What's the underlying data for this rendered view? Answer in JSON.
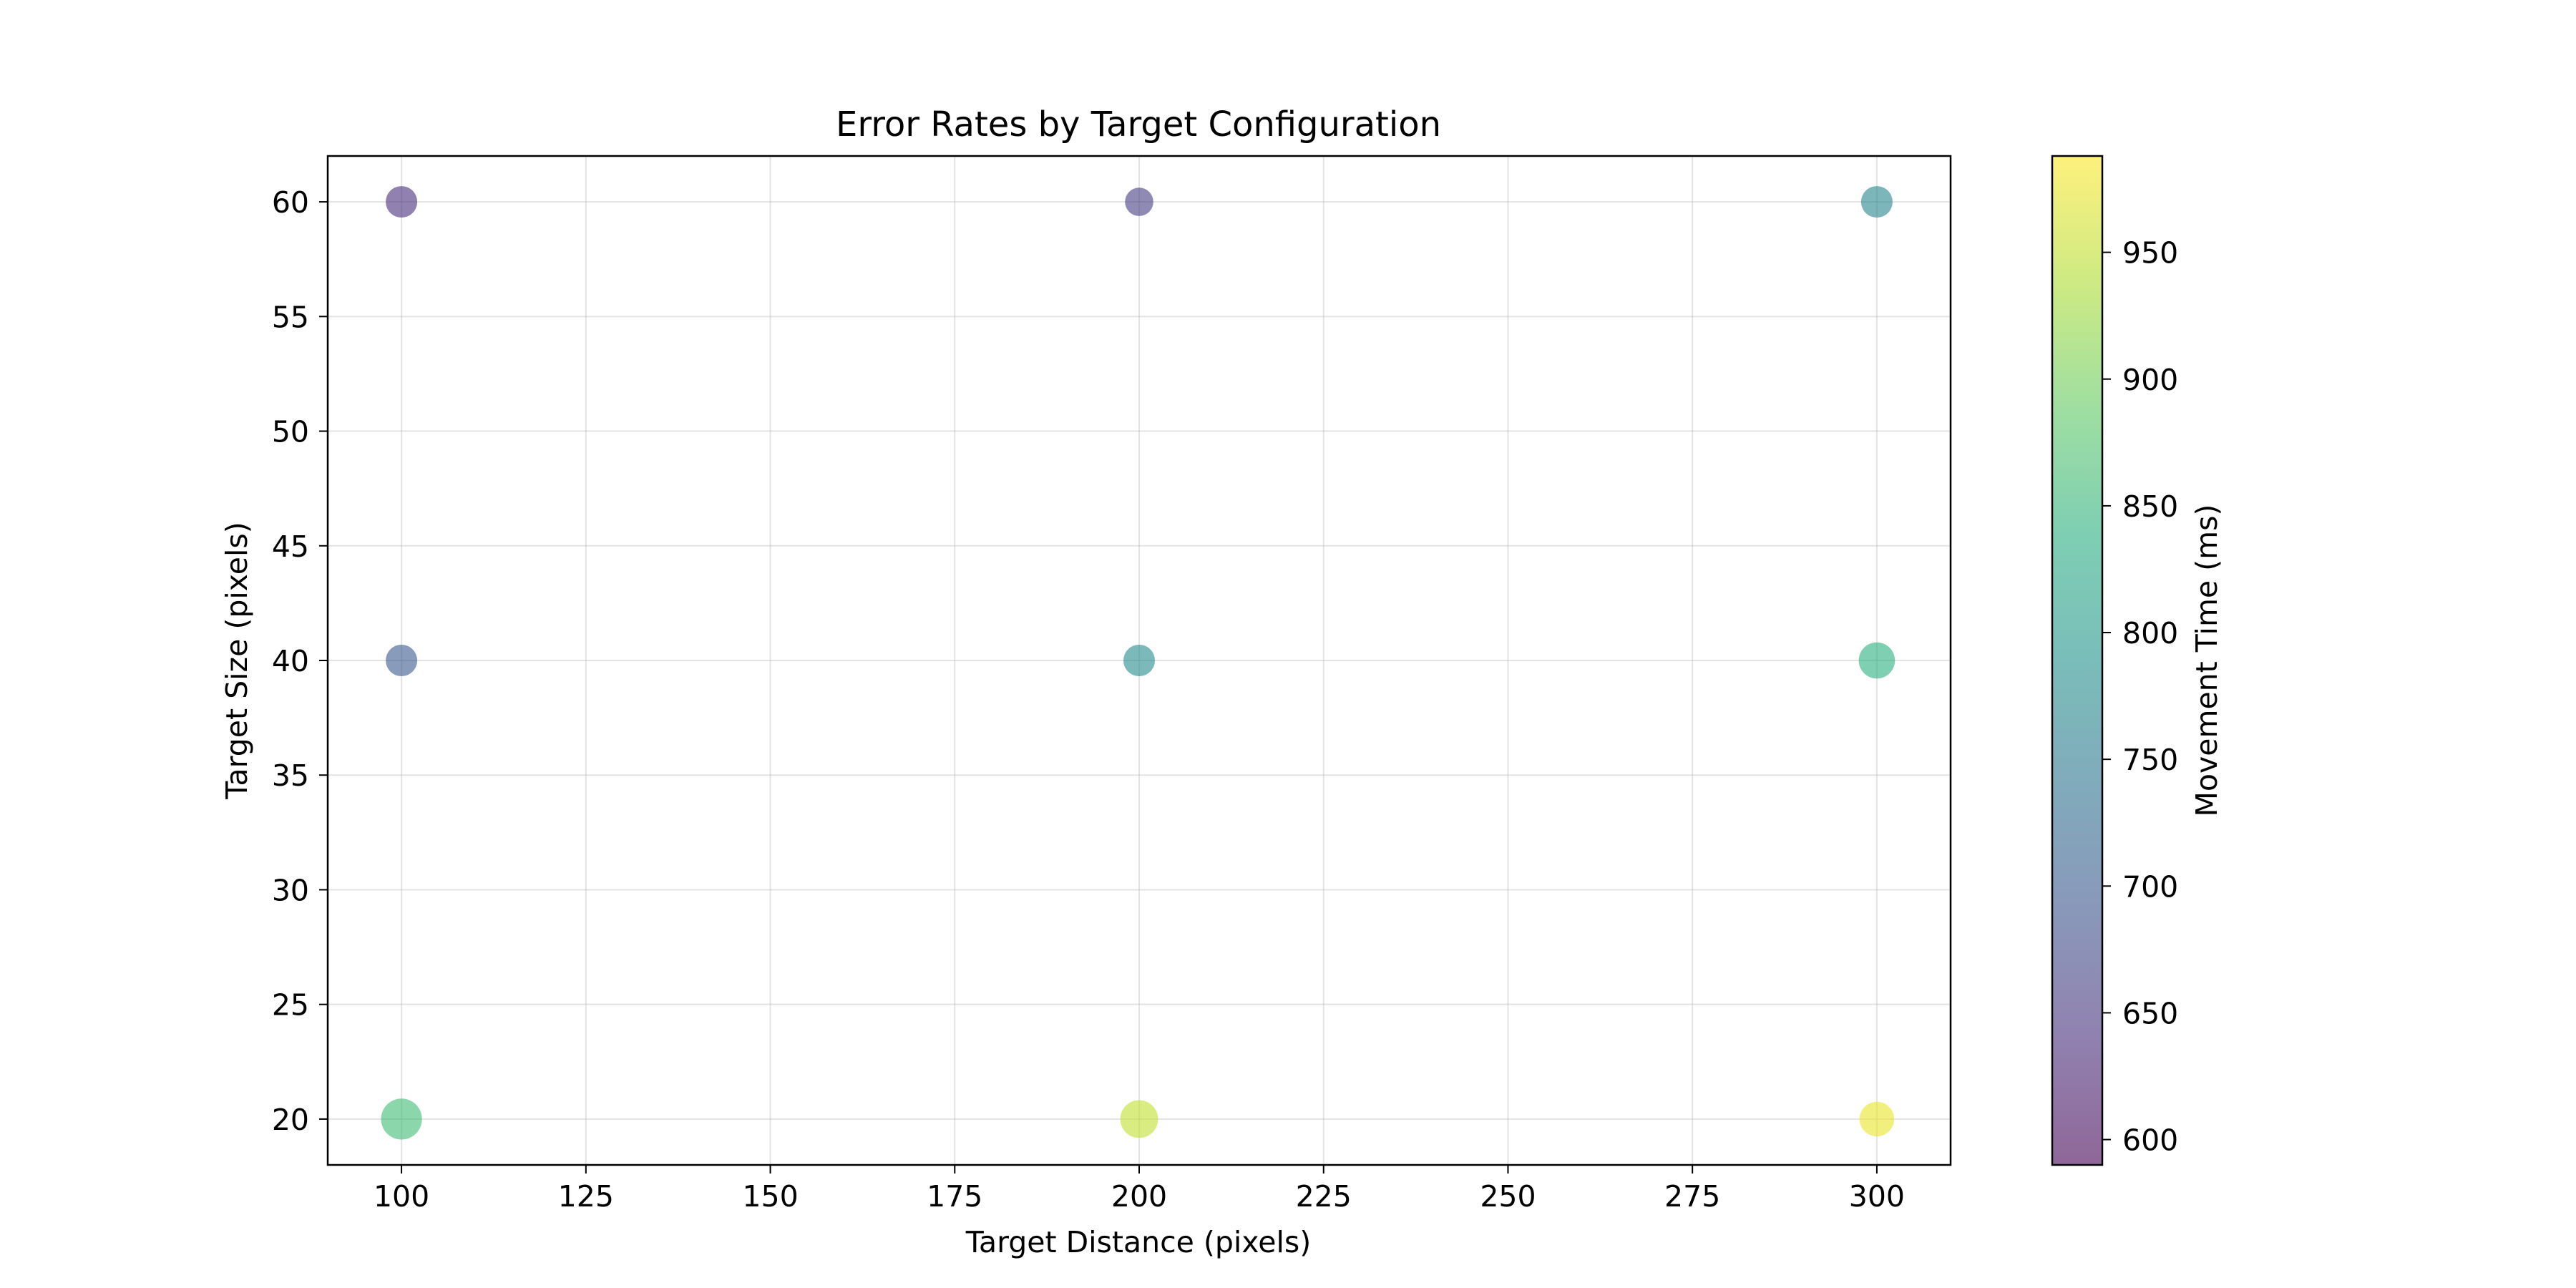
{
  "chart_data": {
    "type": "scatter",
    "title": "Error Rates by Target Configuration",
    "xlabel": "Target Distance (pixels)",
    "ylabel": "Target Size (pixels)",
    "xlim": [
      90,
      310
    ],
    "ylim": [
      18,
      62
    ],
    "xticks": [
      100,
      125,
      150,
      175,
      200,
      225,
      250,
      275,
      300
    ],
    "yticks": [
      20,
      25,
      30,
      35,
      40,
      45,
      50,
      55,
      60
    ],
    "grid": true,
    "points": [
      {
        "x": 100,
        "y": 60,
        "movement_time": 640,
        "marker_size": 1.0
      },
      {
        "x": 200,
        "y": 60,
        "movement_time": 660,
        "marker_size": 0.9
      },
      {
        "x": 300,
        "y": 60,
        "movement_time": 770,
        "marker_size": 1.0
      },
      {
        "x": 100,
        "y": 40,
        "movement_time": 700,
        "marker_size": 1.0
      },
      {
        "x": 200,
        "y": 40,
        "movement_time": 780,
        "marker_size": 1.0
      },
      {
        "x": 300,
        "y": 40,
        "movement_time": 840,
        "marker_size": 1.15
      },
      {
        "x": 100,
        "y": 20,
        "movement_time": 860,
        "marker_size": 1.3
      },
      {
        "x": 200,
        "y": 20,
        "movement_time": 950,
        "marker_size": 1.2
      },
      {
        "x": 300,
        "y": 20,
        "movement_time": 975,
        "marker_size": 1.1
      }
    ],
    "colorbar": {
      "label": "Movement Time (ms)",
      "range": [
        590,
        988
      ],
      "ticks": [
        600,
        650,
        700,
        750,
        800,
        850,
        900,
        950
      ],
      "colormap": "viridis",
      "alpha": 0.6
    }
  }
}
